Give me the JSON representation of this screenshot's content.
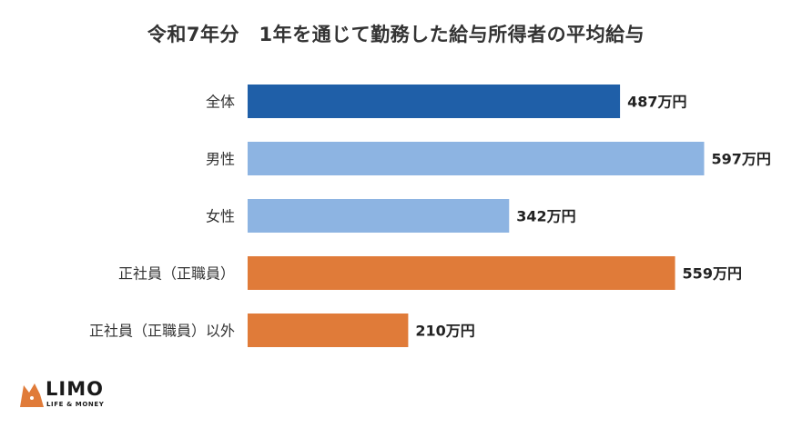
{
  "chart_data": {
    "type": "bar",
    "orientation": "horizontal",
    "title": "令和7年分　1年を通じて勤務した給与所得者の平均給与",
    "categories": [
      "全体",
      "男性",
      "女性",
      "正社員（正職員）",
      "正社員（正職員）以外"
    ],
    "values": [
      487,
      597,
      342,
      559,
      210
    ],
    "value_labels": [
      "487万円",
      "597万円",
      "342万円",
      "559万円",
      "210万円"
    ],
    "bar_colors": [
      "#1f5fa8",
      "#8db4e2",
      "#8db4e2",
      "#e07b39",
      "#e07b39"
    ],
    "xlim": [
      0,
      600
    ],
    "grid": false,
    "legend": "none"
  },
  "logo": {
    "name": "LIMO",
    "tagline": "LIFE & MONEY",
    "color": "#e07b39"
  }
}
